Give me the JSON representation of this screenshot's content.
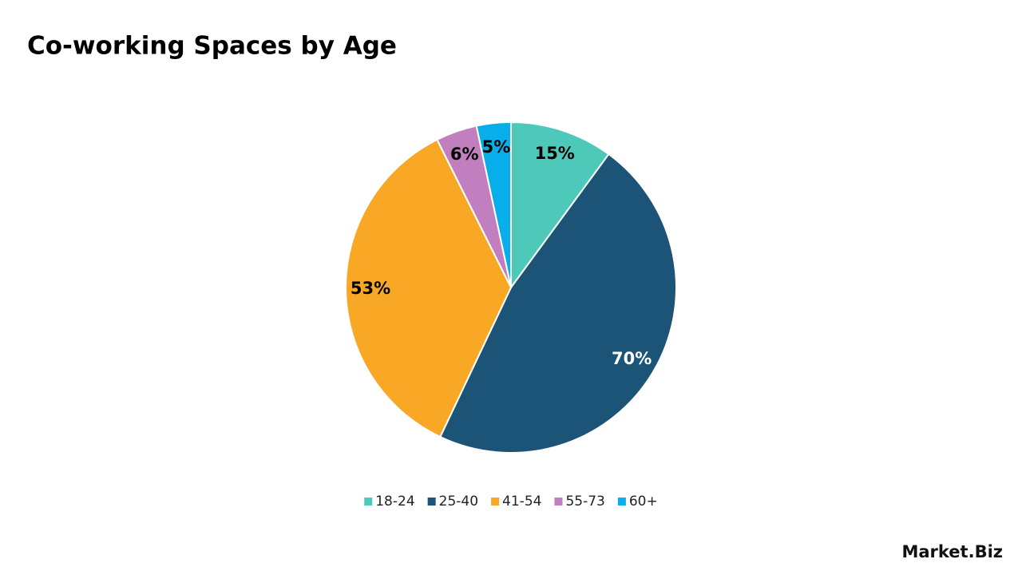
{
  "chart_data": {
    "type": "pie",
    "title": "Co-working Spaces by Age",
    "categories": [
      "18-24",
      "25-40",
      "41-54",
      "55-73",
      "60+"
    ],
    "values": [
      15,
      70,
      53,
      6,
      5
    ],
    "value_labels": [
      "15%",
      "70%",
      "53%",
      "6%",
      "5%"
    ],
    "colors": [
      "#4ec9b9",
      "#1b5476",
      "#f9a825",
      "#c27fbf",
      "#08aeea"
    ],
    "legend": "bottom",
    "watermark": "Market.Biz"
  }
}
